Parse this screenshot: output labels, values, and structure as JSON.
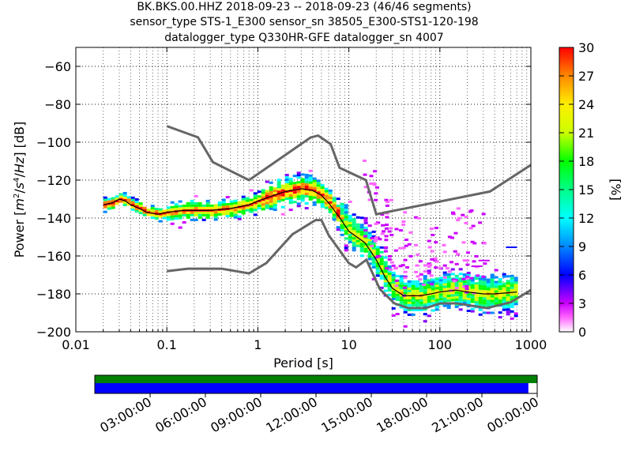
{
  "header": {
    "line1": "BK.BKS.00.HHZ   2018-09-23 -- 2018-09-23  (46/46 segments)",
    "line2": "sensor_type STS-1_E300 sensor_sn 38505_E300-STS1-120-198",
    "line3": "datalogger_type Q330HR-GFE datalogger_sn 4007"
  },
  "chart_data": {
    "type": "heatmap",
    "xlabel": "Period [s]",
    "ylabel": "Power [m²/s⁴/Hz] [dB]",
    "x_scale": "log",
    "xlim": [
      0.01,
      1000
    ],
    "ylim": [
      -200,
      -50
    ],
    "x_ticks": [
      0.01,
      0.1,
      1,
      10,
      100,
      1000
    ],
    "x_tick_labels": [
      "0.01",
      "0.1",
      "1",
      "10",
      "100",
      "1000"
    ],
    "y_ticks": [
      -200,
      -180,
      -160,
      -140,
      -120,
      -100,
      -80,
      -60
    ],
    "y_tick_labels": [
      "−200",
      "−180",
      "−160",
      "−140",
      "−120",
      "−100",
      "−80",
      "−60"
    ],
    "grid": true,
    "colorbar": {
      "label": "[%]",
      "range": [
        0,
        30
      ],
      "ticks": [
        0,
        3,
        6,
        9,
        12,
        15,
        18,
        21,
        24,
        27,
        30
      ],
      "tick_labels": [
        "0",
        "3",
        "6",
        "9",
        "12",
        "15",
        "18",
        "21",
        "24",
        "27",
        "30"
      ]
    },
    "nhnm": [
      [
        0.1,
        -91.5
      ],
      [
        0.22,
        -97.4
      ],
      [
        0.32,
        -110.5
      ],
      [
        0.8,
        -120
      ],
      [
        3.8,
        -97.5
      ],
      [
        4.6,
        -96.5
      ],
      [
        6.3,
        -101
      ],
      [
        7.9,
        -113.5
      ],
      [
        15.4,
        -120
      ],
      [
        20,
        -138
      ],
      [
        354.8,
        -126
      ],
      [
        1000,
        -112
      ]
    ],
    "nlnm": [
      [
        0.1,
        -168
      ],
      [
        0.17,
        -166.7
      ],
      [
        0.4,
        -166.7
      ],
      [
        0.8,
        -169.2
      ],
      [
        1.24,
        -163.7
      ],
      [
        2.4,
        -148.6
      ],
      [
        4.3,
        -141.1
      ],
      [
        5,
        -141.1
      ],
      [
        6,
        -149
      ],
      [
        10,
        -163.8
      ],
      [
        12,
        -166
      ],
      [
        15.6,
        -162
      ],
      [
        21.9,
        -177.5
      ],
      [
        31.6,
        -185
      ],
      [
        45,
        -187.5
      ],
      [
        70,
        -187.5
      ],
      [
        101,
        -185
      ],
      [
        154,
        -185
      ],
      [
        328,
        -187.5
      ],
      [
        600,
        -184.4
      ],
      [
        1000,
        -178
      ]
    ],
    "psd_mode": [
      [
        0.02,
        -133
      ],
      [
        0.025,
        -132
      ],
      [
        0.03,
        -130
      ],
      [
        0.035,
        -131
      ],
      [
        0.04,
        -133
      ],
      [
        0.05,
        -135
      ],
      [
        0.06,
        -137
      ],
      [
        0.08,
        -138
      ],
      [
        0.1,
        -137
      ],
      [
        0.15,
        -136
      ],
      [
        0.2,
        -136
      ],
      [
        0.3,
        -136
      ],
      [
        0.5,
        -135
      ],
      [
        0.8,
        -133
      ],
      [
        1,
        -131
      ],
      [
        1.5,
        -128
      ],
      [
        2,
        -126
      ],
      [
        3,
        -124.5
      ],
      [
        4,
        -125.5
      ],
      [
        5,
        -128
      ],
      [
        6,
        -132
      ],
      [
        8,
        -140
      ],
      [
        10,
        -147
      ],
      [
        15,
        -153
      ],
      [
        20,
        -162
      ],
      [
        25,
        -171
      ],
      [
        30,
        -177
      ],
      [
        40,
        -181
      ],
      [
        60,
        -181
      ],
      [
        80,
        -180
      ],
      [
        100,
        -179
      ],
      [
        150,
        -178
      ],
      [
        200,
        -179
      ],
      [
        300,
        -180
      ],
      [
        400,
        -180
      ],
      [
        700,
        -179
      ]
    ]
  },
  "time_axis": {
    "labels": [
      "03:00:00",
      "06:00:00",
      "09:00:00",
      "12:00:00",
      "15:00:00",
      "18:00:00",
      "21:00:00",
      "00:00:00"
    ],
    "data_coverage": 0.98,
    "gap_coverage": 1.0
  },
  "colors": {
    "reference_curve": "#666666",
    "mode_line": "#000000",
    "coverage_bar": "#0000ff",
    "gap_bar": "#008000"
  }
}
